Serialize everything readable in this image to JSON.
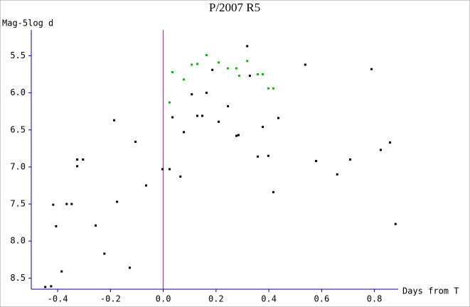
{
  "chart_data": {
    "type": "scatter",
    "title": "P/2007 R5",
    "y_label": "Mag-5log d",
    "x_label": "Days from T",
    "xlim": [
      -0.5,
      0.89
    ],
    "ylim": [
      8.65,
      5.15
    ],
    "xticks": [
      -0.4,
      -0.2,
      {
        "value": 0,
        "label": "0.0"
      },
      0.2,
      0.4,
      0.6,
      0.8
    ],
    "yticks": [
      5.5,
      {
        "value": 6,
        "label": "6.0"
      },
      6.5,
      {
        "value": 7,
        "label": "7.0"
      },
      7.5,
      {
        "value": 8,
        "label": "8.0"
      },
      8.5
    ],
    "reference_x": 0,
    "reference_color": "#cc00cc",
    "axis_color": "#0000aa",
    "series": [
      {
        "color": "#000000",
        "x": [
          -0.447,
          -0.425,
          -0.417,
          -0.406,
          -0.385,
          -0.366,
          -0.347,
          -0.326,
          -0.326,
          -0.304,
          -0.256,
          -0.223,
          -0.186,
          -0.175,
          -0.127,
          -0.105,
          -0.065,
          -0.003,
          0.024,
          0.035,
          0.065,
          0.078,
          0.108,
          0.129,
          0.148,
          0.164,
          0.186,
          0.21,
          0.245,
          0.277,
          0.285,
          0.318,
          0.328,
          0.358,
          0.377,
          0.398,
          0.417,
          0.436,
          0.538,
          0.579,
          0.659,
          0.708,
          0.789,
          0.824,
          0.859,
          0.88
        ],
        "values": [
          8.62,
          8.61,
          7.51,
          7.8,
          8.41,
          7.5,
          7.5,
          6.9,
          6.99,
          6.9,
          7.79,
          8.17,
          6.37,
          7.47,
          8.36,
          6.66,
          7.25,
          7.03,
          7.03,
          6.33,
          7.13,
          6.53,
          6.02,
          6.31,
          6.31,
          6.0,
          5.69,
          6.39,
          6.18,
          6.58,
          6.57,
          5.37,
          5.77,
          6.86,
          6.46,
          6.85,
          7.34,
          6.34,
          5.62,
          6.92,
          7.1,
          6.9,
          5.68,
          6.77,
          6.67,
          7.77
        ]
      },
      {
        "color": "#00c000",
        "x": [
          0.024,
          0.035,
          0.078,
          0.108,
          0.129,
          0.164,
          0.21,
          0.245,
          0.277,
          0.288,
          0.318,
          0.358,
          0.377,
          0.398,
          0.417
        ],
        "values": [
          6.13,
          5.72,
          5.82,
          5.62,
          5.61,
          5.49,
          5.59,
          5.67,
          5.67,
          5.77,
          5.57,
          5.75,
          5.75,
          5.94,
          5.94
        ]
      }
    ]
  }
}
